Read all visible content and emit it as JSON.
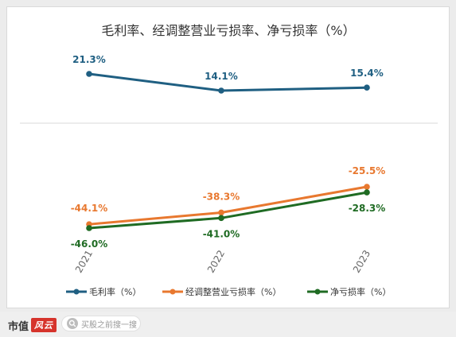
{
  "chart_data": {
    "type": "line",
    "title": "毛利率、经调整营业亏损率、净亏损率（%）",
    "categories": [
      "2021",
      "2022",
      "2023"
    ],
    "panels": [
      {
        "series": [
          {
            "name": "毛利率（%）",
            "color": "#1f5f82",
            "values": [
              21.3,
              14.1,
              15.4
            ],
            "labels": [
              "21.3%",
              "14.1%",
              "15.4%"
            ]
          }
        ]
      },
      {
        "series": [
          {
            "name": "经调整营业亏损率（%）",
            "color": "#e8782f",
            "values": [
              -44.1,
              -38.3,
              -25.5
            ],
            "labels": [
              "-44.1%",
              "-38.3%",
              "-25.5%"
            ]
          },
          {
            "name": "净亏损率（%）",
            "color": "#1f6b23",
            "values": [
              -46.0,
              -41.0,
              -28.3
            ],
            "labels": [
              "-46.0%",
              "-41.0%",
              "-28.3%"
            ]
          }
        ]
      }
    ],
    "legend_position": "bottom",
    "grid": false
  },
  "footer": {
    "brand": "市值",
    "seal": "风云",
    "search_placeholder": "买股之前搜一搜"
  }
}
